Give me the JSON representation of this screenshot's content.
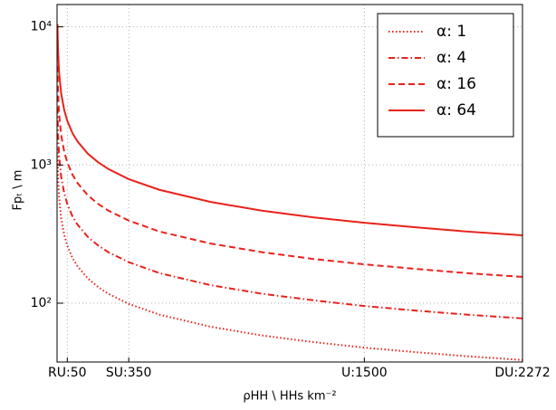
{
  "chart_data": {
    "type": "line",
    "x_label": "ρHH \\ HHs km⁻²",
    "y_label": "Fpₜ \\ m",
    "y_scale": "log",
    "grid": true,
    "legend_position": "upper right",
    "xlim": [
      0,
      2272
    ],
    "ylim": [
      37.5,
      14500
    ],
    "xticks": [
      {
        "value": 50,
        "label": "RU:50"
      },
      {
        "value": 350,
        "label": "SU:350"
      },
      {
        "value": 1500,
        "label": "U:1500"
      },
      {
        "value": 2272,
        "label": "DU:2272"
      }
    ],
    "yticks": [
      {
        "value": 100,
        "label": "10²"
      },
      {
        "value": 1000,
        "label": "10³"
      },
      {
        "value": 10000,
        "label": "10⁴"
      }
    ],
    "x": [
      2,
      5,
      10,
      20,
      35,
      50,
      75,
      100,
      150,
      200,
      250,
      350,
      500,
      750,
      1000,
      1250,
      1500,
      1750,
      2000,
      2272
    ],
    "series": [
      {
        "name": "α: 1",
        "color": "#e8221b",
        "linestyle": "dotted",
        "values": [
          1307,
          826,
          584,
          413,
          312,
          261,
          213,
          185,
          151,
          131,
          117,
          98.8,
          82.6,
          67.5,
          58.4,
          52.3,
          47.7,
          44.2,
          41.3,
          38.8
        ]
      },
      {
        "name": "α: 4",
        "color": "#e8221b",
        "linestyle": "dashdot",
        "values": [
          2614,
          1652,
          1168,
          826,
          624,
          522,
          426,
          370,
          302,
          262,
          234,
          198,
          165,
          135,
          117,
          105,
          95.4,
          88.4,
          82.6,
          77.6
        ]
      },
      {
        "name": "α: 16",
        "color": "#e8221b",
        "linestyle": "dashed",
        "values": [
          5228,
          3304,
          2336,
          1652,
          1248,
          1044,
          852,
          740,
          604,
          524,
          468,
          396,
          330,
          270,
          234,
          209,
          191,
          177,
          165,
          155
        ]
      },
      {
        "name": "α: 64",
        "color": "#e8221b",
        "linestyle": "solid",
        "values": [
          10456,
          6608,
          4672,
          3304,
          2496,
          2088,
          1704,
          1480,
          1208,
          1048,
          936,
          790,
          661,
          540,
          467,
          418,
          382,
          354,
          330,
          310
        ]
      }
    ]
  }
}
